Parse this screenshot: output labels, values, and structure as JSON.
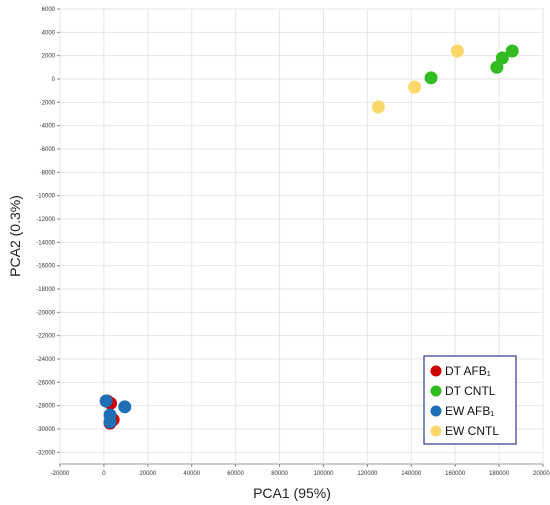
{
  "chart_data": {
    "type": "scatter",
    "xlabel": "PCA1 (95%)",
    "ylabel": "PCA2 (0.3%)",
    "xlim": [
      -20000,
      200000
    ],
    "ylim": [
      -33000,
      6000
    ],
    "xticks": [
      -20000,
      0,
      20000,
      40000,
      60000,
      80000,
      100000,
      120000,
      140000,
      160000,
      180000,
      200000
    ],
    "yticks": [
      6000,
      4000,
      2000,
      0,
      -2000,
      -4000,
      -6000,
      -8000,
      -10000,
      -12000,
      -14000,
      -16000,
      -18000,
      -20000,
      -22000,
      -24000,
      -26000,
      -28000,
      -30000,
      -32000
    ],
    "grid": true,
    "legend_position": "bottom-right",
    "series": [
      {
        "name": "DT AFB₁",
        "color": "#cc0000",
        "points": [
          [
            1500,
            -27600
          ],
          [
            3000,
            -27800
          ],
          [
            4200,
            -29200
          ],
          [
            2800,
            -29500
          ]
        ]
      },
      {
        "name": "DT CNTL",
        "color": "#33bb22",
        "points": [
          [
            149000,
            100
          ],
          [
            179000,
            1000
          ],
          [
            181500,
            1800
          ],
          [
            186000,
            2400
          ]
        ]
      },
      {
        "name": "EW AFB₁",
        "color": "#1f6fb5",
        "points": [
          [
            1000,
            -27600
          ],
          [
            9500,
            -28100
          ],
          [
            2800,
            -28800
          ],
          [
            2800,
            -29400
          ]
        ]
      },
      {
        "name": "EW CNTL",
        "color": "#fcd86a",
        "points": [
          [
            125000,
            -2400
          ],
          [
            141500,
            -700
          ],
          [
            161000,
            2400
          ]
        ]
      }
    ]
  }
}
